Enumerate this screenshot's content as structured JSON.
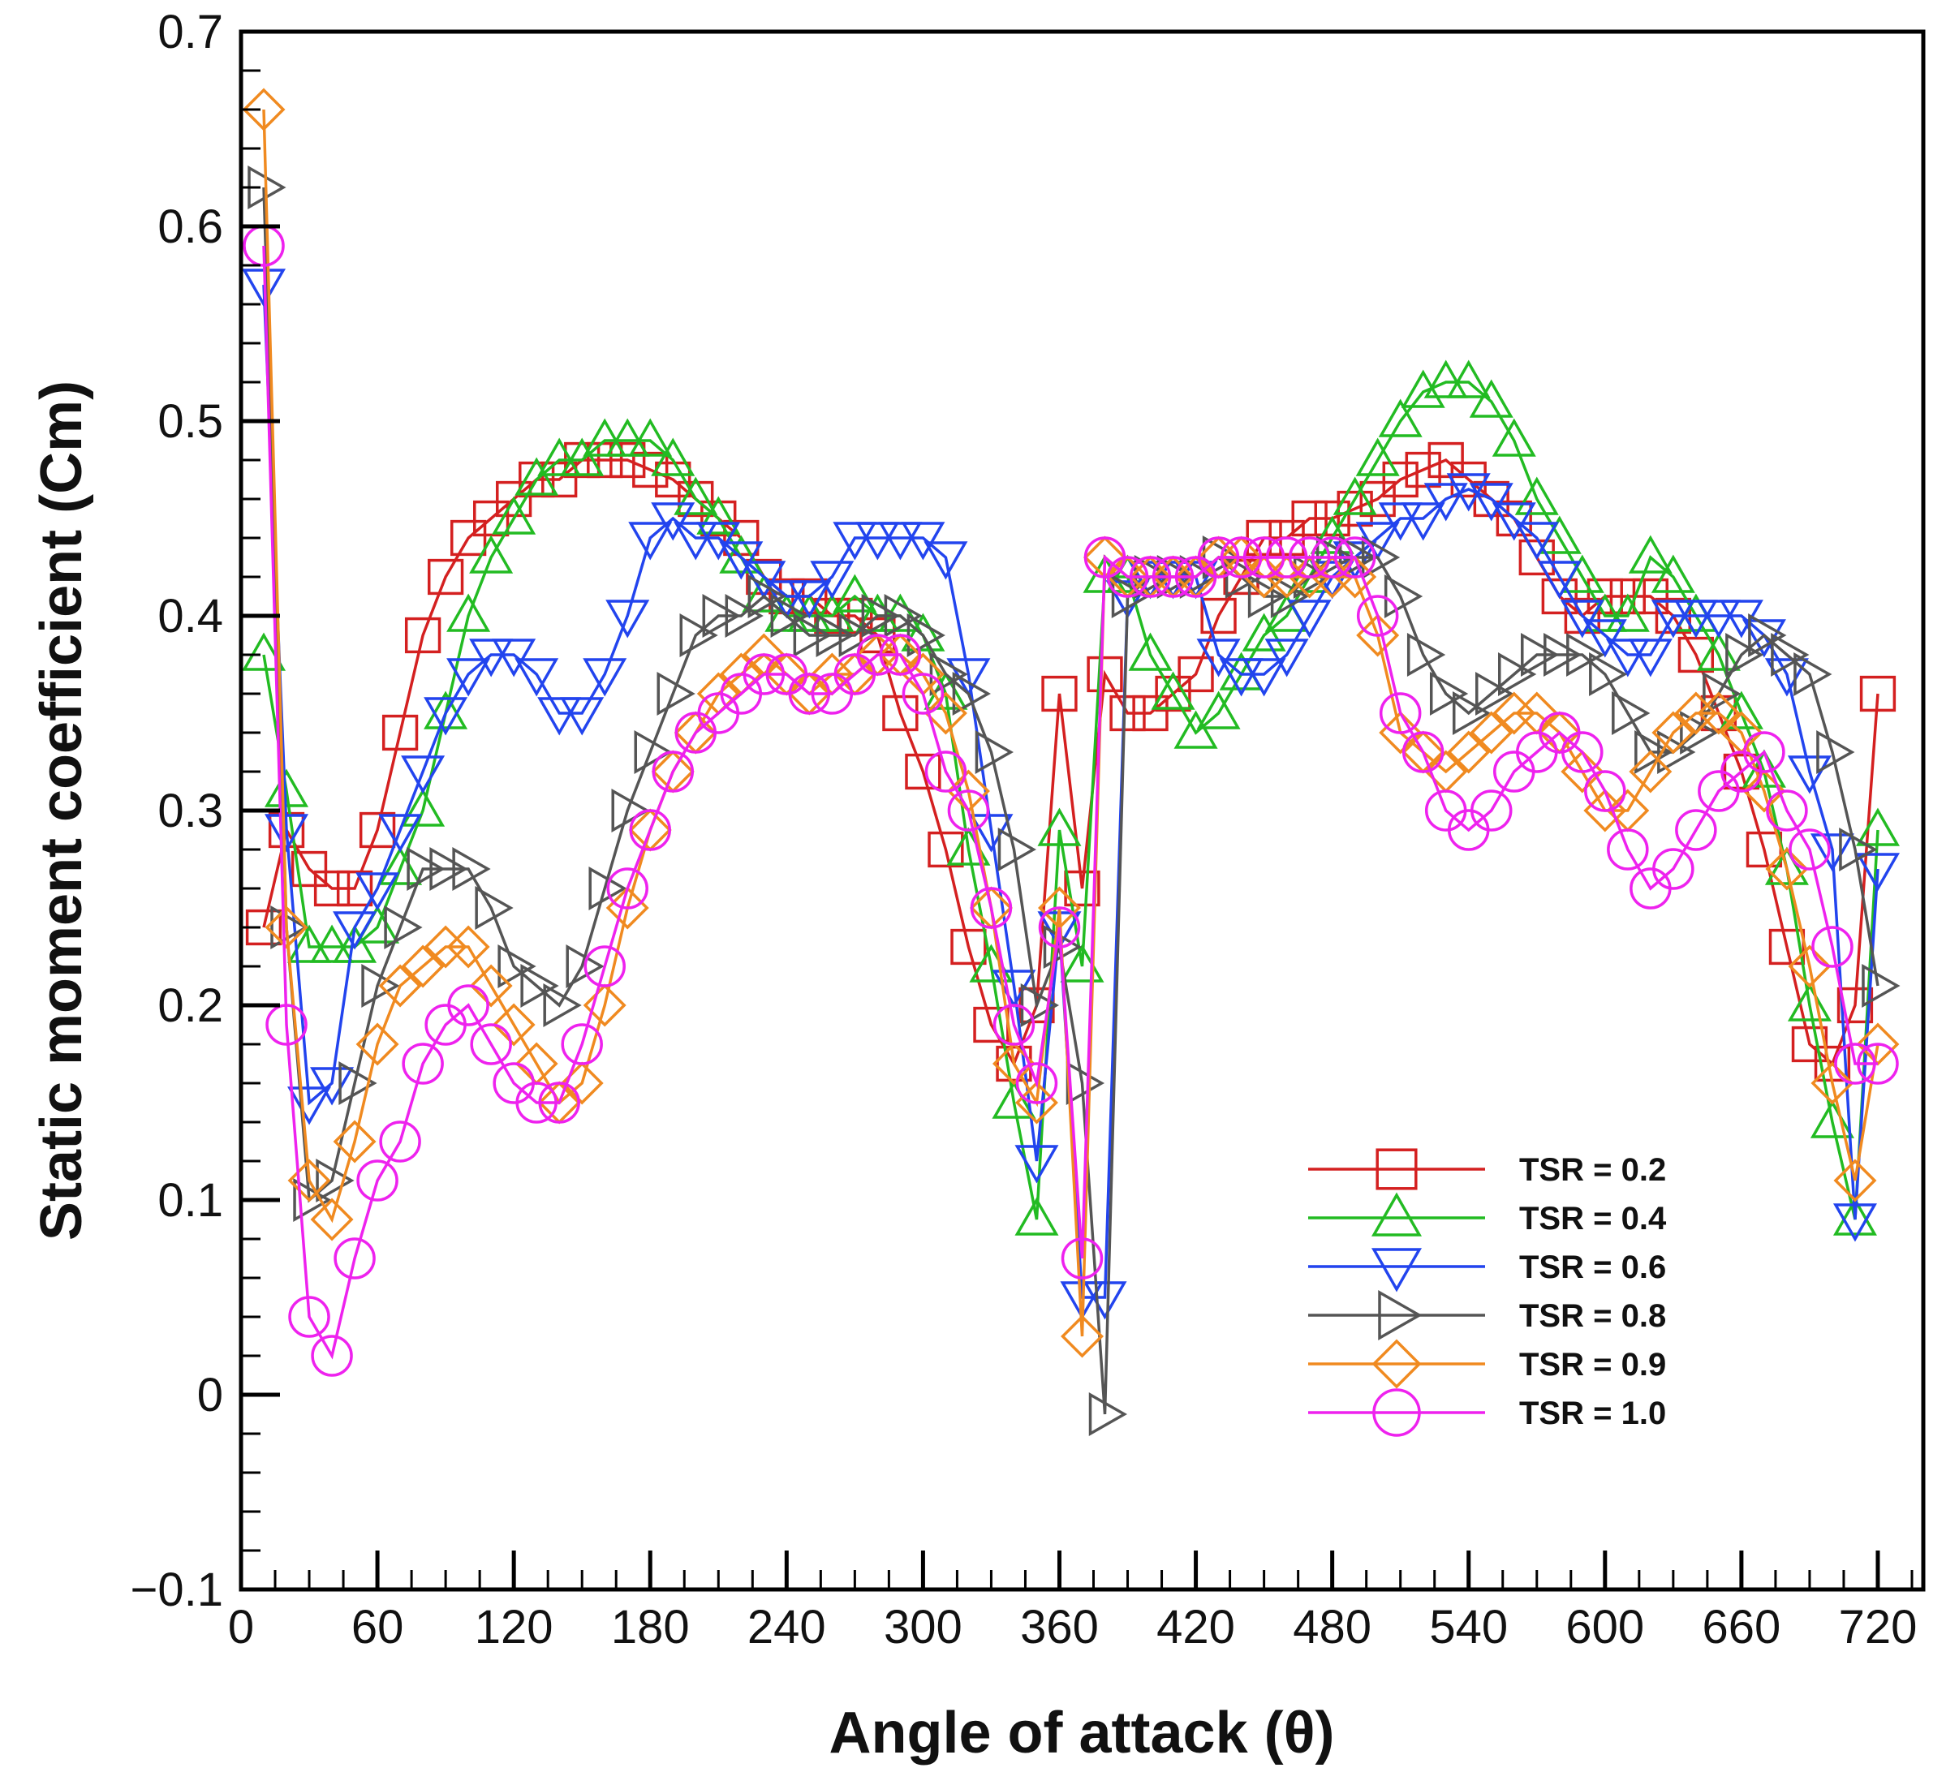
{
  "chart_data": {
    "type": "line",
    "title": "",
    "xlabel": "Angle of attack (θ)",
    "ylabel": "Static moment coefficient (Cm)",
    "xlim": [
      0,
      740
    ],
    "ylim": [
      -0.1,
      0.7
    ],
    "xticks": [
      0,
      60,
      120,
      180,
      240,
      300,
      360,
      420,
      480,
      540,
      600,
      660,
      720
    ],
    "yticks": [
      -0.1,
      0,
      0.1,
      0.2,
      0.3,
      0.4,
      0.5,
      0.6,
      0.7
    ],
    "ytick_labels": [
      "−0.1",
      "0",
      "0.1",
      "0.2",
      "0.3",
      "0.4",
      "0.5",
      "0.6",
      "0.7"
    ],
    "grid": false,
    "legend_position": "bottom-right",
    "x": [
      10,
      20,
      30,
      40,
      50,
      60,
      70,
      80,
      90,
      100,
      110,
      120,
      130,
      140,
      150,
      160,
      170,
      180,
      190,
      200,
      210,
      220,
      230,
      240,
      250,
      260,
      270,
      280,
      290,
      300,
      310,
      320,
      330,
      340,
      350,
      360,
      370,
      380,
      390,
      400,
      410,
      420,
      430,
      440,
      450,
      460,
      470,
      480,
      490,
      500,
      510,
      520,
      530,
      540,
      550,
      560,
      570,
      580,
      590,
      600,
      610,
      620,
      630,
      640,
      650,
      660,
      670,
      680,
      690,
      700,
      710,
      720
    ],
    "series": [
      {
        "name": "TSR = 0.2",
        "color": "#d42020",
        "marker": "square",
        "values": [
          0.24,
          0.29,
          0.27,
          0.26,
          0.26,
          0.29,
          0.34,
          0.39,
          0.42,
          0.44,
          0.45,
          0.46,
          0.47,
          0.47,
          0.48,
          0.48,
          0.48,
          0.475,
          0.47,
          0.46,
          0.45,
          0.44,
          0.42,
          0.41,
          0.41,
          0.4,
          0.4,
          0.39,
          0.35,
          0.32,
          0.28,
          0.23,
          0.19,
          0.17,
          0.2,
          0.36,
          0.26,
          0.37,
          0.35,
          0.35,
          0.36,
          0.37,
          0.4,
          0.42,
          0.44,
          0.44,
          0.45,
          0.45,
          0.455,
          0.46,
          0.47,
          0.475,
          0.48,
          0.47,
          0.46,
          0.45,
          0.43,
          0.41,
          0.4,
          0.41,
          0.41,
          0.41,
          0.4,
          0.38,
          0.35,
          0.32,
          0.28,
          0.23,
          0.18,
          0.17,
          0.2,
          0.36
        ]
      },
      {
        "name": "TSR = 0.4",
        "color": "#22bb22",
        "marker": "triangle-up",
        "values": [
          0.38,
          0.31,
          0.23,
          0.23,
          0.23,
          0.24,
          0.27,
          0.3,
          0.35,
          0.4,
          0.43,
          0.45,
          0.47,
          0.48,
          0.48,
          0.49,
          0.49,
          0.49,
          0.48,
          0.46,
          0.45,
          0.43,
          0.41,
          0.4,
          0.4,
          0.4,
          0.41,
          0.4,
          0.4,
          0.39,
          0.36,
          0.28,
          0.22,
          0.15,
          0.09,
          0.29,
          0.22,
          0.42,
          0.42,
          0.38,
          0.36,
          0.34,
          0.35,
          0.37,
          0.39,
          0.4,
          0.42,
          0.44,
          0.46,
          0.48,
          0.5,
          0.515,
          0.52,
          0.52,
          0.51,
          0.49,
          0.46,
          0.44,
          0.42,
          0.4,
          0.4,
          0.43,
          0.42,
          0.4,
          0.38,
          0.35,
          0.32,
          0.27,
          0.2,
          0.14,
          0.09,
          0.29
        ]
      },
      {
        "name": "TSR = 0.6",
        "color": "#2244ee",
        "marker": "triangle-down",
        "values": [
          0.57,
          0.29,
          0.15,
          0.16,
          0.24,
          0.26,
          0.29,
          0.32,
          0.35,
          0.37,
          0.38,
          0.38,
          0.37,
          0.35,
          0.35,
          0.37,
          0.4,
          0.44,
          0.45,
          0.44,
          0.44,
          0.43,
          0.42,
          0.41,
          0.41,
          0.42,
          0.44,
          0.44,
          0.44,
          0.44,
          0.43,
          0.37,
          0.29,
          0.21,
          0.12,
          0.24,
          0.05,
          0.05,
          0.41,
          0.42,
          0.42,
          0.42,
          0.38,
          0.37,
          0.37,
          0.38,
          0.4,
          0.42,
          0.43,
          0.44,
          0.45,
          0.45,
          0.46,
          0.465,
          0.46,
          0.45,
          0.44,
          0.42,
          0.4,
          0.39,
          0.38,
          0.38,
          0.4,
          0.4,
          0.4,
          0.4,
          0.39,
          0.37,
          0.32,
          0.28,
          0.09,
          0.27
        ]
      },
      {
        "name": "TSR = 0.8",
        "color": "#555555",
        "marker": "triangle-right",
        "values": [
          0.62,
          0.24,
          0.1,
          0.11,
          0.16,
          0.21,
          0.24,
          0.27,
          0.27,
          0.27,
          0.25,
          0.22,
          0.21,
          0.2,
          0.22,
          0.26,
          0.3,
          0.33,
          0.36,
          0.39,
          0.4,
          0.4,
          0.41,
          0.4,
          0.39,
          0.39,
          0.39,
          0.4,
          0.4,
          0.39,
          0.37,
          0.36,
          0.33,
          0.28,
          0.2,
          0.23,
          0.16,
          -0.01,
          0.41,
          0.42,
          0.42,
          0.42,
          0.43,
          0.42,
          0.41,
          0.41,
          0.42,
          0.43,
          0.43,
          0.43,
          0.41,
          0.38,
          0.36,
          0.35,
          0.36,
          0.37,
          0.38,
          0.38,
          0.38,
          0.37,
          0.35,
          0.33,
          0.33,
          0.34,
          0.36,
          0.38,
          0.39,
          0.38,
          0.37,
          0.33,
          0.28,
          0.21
        ]
      },
      {
        "name": "TSR = 0.9",
        "color": "#f08a20",
        "marker": "diamond",
        "values": [
          0.66,
          0.24,
          0.11,
          0.09,
          0.13,
          0.18,
          0.21,
          0.22,
          0.23,
          0.23,
          0.21,
          0.19,
          0.17,
          0.15,
          0.16,
          0.2,
          0.25,
          0.29,
          0.32,
          0.34,
          0.36,
          0.37,
          0.38,
          0.37,
          0.36,
          0.37,
          0.37,
          0.38,
          0.38,
          0.37,
          0.35,
          0.31,
          0.25,
          0.17,
          0.15,
          0.25,
          0.03,
          0.43,
          0.42,
          0.42,
          0.42,
          0.42,
          0.43,
          0.43,
          0.42,
          0.42,
          0.42,
          0.42,
          0.42,
          0.39,
          0.34,
          0.33,
          0.32,
          0.33,
          0.34,
          0.35,
          0.35,
          0.34,
          0.32,
          0.3,
          0.3,
          0.32,
          0.34,
          0.35,
          0.35,
          0.34,
          0.31,
          0.27,
          0.22,
          0.16,
          0.11,
          0.18
        ]
      },
      {
        "name": "TSR = 1.0",
        "color": "#ee22ee",
        "marker": "circle",
        "values": [
          0.59,
          0.19,
          0.04,
          0.02,
          0.07,
          0.11,
          0.13,
          0.17,
          0.19,
          0.2,
          0.18,
          0.16,
          0.15,
          0.15,
          0.18,
          0.22,
          0.26,
          0.29,
          0.32,
          0.34,
          0.35,
          0.36,
          0.37,
          0.37,
          0.36,
          0.36,
          0.37,
          0.38,
          0.38,
          0.36,
          0.32,
          0.3,
          0.25,
          0.19,
          0.16,
          0.24,
          0.07,
          0.43,
          0.42,
          0.42,
          0.42,
          0.42,
          0.43,
          0.43,
          0.43,
          0.43,
          0.43,
          0.43,
          0.43,
          0.4,
          0.35,
          0.33,
          0.3,
          0.29,
          0.3,
          0.32,
          0.33,
          0.34,
          0.33,
          0.31,
          0.28,
          0.26,
          0.27,
          0.29,
          0.31,
          0.32,
          0.33,
          0.3,
          0.28,
          0.23,
          0.17,
          0.17
        ]
      }
    ]
  }
}
